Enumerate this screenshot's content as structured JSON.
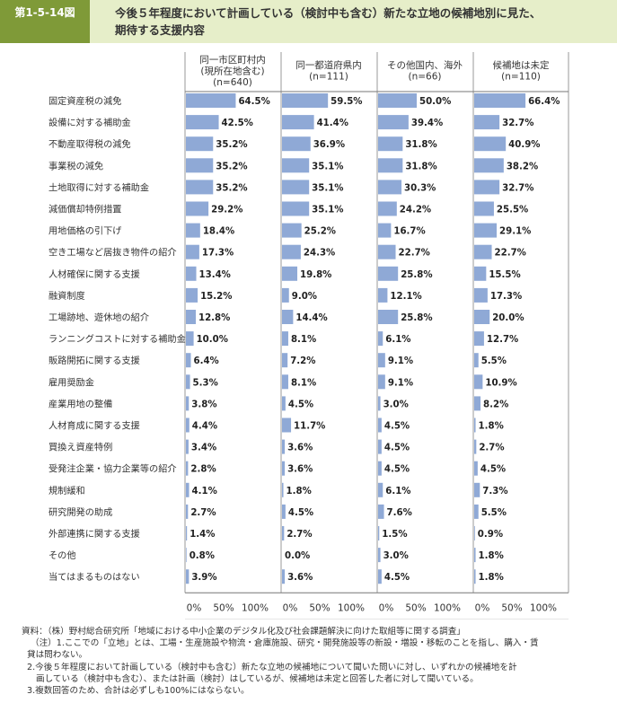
{
  "figure_label": "第1-5-14図",
  "title_line1": "今後５年程度において計画している（検討中も含む）新たな立地の候補地別に見た、",
  "title_line2": "期待する支援内容",
  "chart_data": {
    "type": "bar",
    "orientation": "horizontal",
    "bar_color": "#8fa9d6",
    "xlim": [
      0,
      100
    ],
    "x_ticks": [
      "0%",
      "50%",
      "100%"
    ],
    "categories": [
      "固定資産税の減免",
      "設備に対する補助金",
      "不動産取得税の減免",
      "事業税の減免",
      "土地取得に対する補助金",
      "減価償却特例措置",
      "用地価格の引下げ",
      "空き工場など居抜き物件の紹介",
      "人材確保に関する支援",
      "融資制度",
      "工場跡地、遊休地の紹介",
      "ランニングコストに対する補助金",
      "販路開拓に関する支援",
      "雇用奨励金",
      "産業用地の整備",
      "人材育成に関する支援",
      "買換え資産特例",
      "受発注企業・協力企業等の紹介",
      "規制緩和",
      "研究開発の助成",
      "外部連携に関する支援",
      "その他",
      "当てはまるものはない"
    ],
    "series": [
      {
        "name_lines": [
          "同一市区町村内",
          "(現所在地含む)",
          "(n=640)"
        ],
        "values": [
          64.5,
          42.5,
          35.2,
          35.2,
          35.2,
          29.2,
          18.4,
          17.3,
          13.4,
          15.2,
          12.8,
          10.0,
          6.4,
          5.3,
          3.8,
          4.4,
          3.4,
          2.8,
          4.1,
          2.7,
          1.4,
          0.8,
          3.9
        ],
        "labels": [
          "64.5%",
          "42.5%",
          "35.2%",
          "35.2%",
          "35.2%",
          "29.2%",
          "18.4%",
          "17.3%",
          "13.4%",
          "15.2%",
          "12.8%",
          "10.0%",
          "6.4%",
          "5.3%",
          "3.8%",
          "4.4%",
          "3.4%",
          "2.8%",
          "4.1%",
          "2.7%",
          "1.4%",
          "0.8%",
          "3.9%"
        ]
      },
      {
        "name_lines": [
          "同一都道府県内",
          "(n=111)"
        ],
        "values": [
          59.5,
          41.4,
          36.9,
          35.1,
          35.1,
          35.1,
          25.2,
          24.3,
          19.8,
          9.0,
          14.4,
          8.1,
          7.2,
          8.1,
          4.5,
          11.7,
          3.6,
          3.6,
          1.8,
          4.5,
          2.7,
          0.0,
          3.6
        ],
        "labels": [
          "59.5%",
          "41.4%",
          "36.9%",
          "35.1%",
          "35.1%",
          "35.1%",
          "25.2%",
          "24.3%",
          "19.8%",
          "9.0%",
          "14.4%",
          "8.1%",
          "7.2%",
          "8.1%",
          "4.5%",
          "11.7%",
          "3.6%",
          "3.6%",
          "1.8%",
          "4.5%",
          "2.7%",
          "0.0%",
          "3.6%"
        ]
      },
      {
        "name_lines": [
          "その他国内、海外",
          "(n=66)"
        ],
        "values": [
          50.0,
          39.4,
          31.8,
          31.8,
          30.3,
          24.2,
          16.7,
          22.7,
          25.8,
          12.1,
          25.8,
          6.1,
          9.1,
          9.1,
          3.0,
          4.5,
          4.5,
          4.5,
          6.1,
          7.6,
          1.5,
          3.0,
          4.5
        ],
        "labels": [
          "50.0%",
          "39.4%",
          "31.8%",
          "31.8%",
          "30.3%",
          "24.2%",
          "16.7%",
          "22.7%",
          "25.8%",
          "12.1%",
          "25.8%",
          "6.1%",
          "9.1%",
          "9.1%",
          "3.0%",
          "4.5%",
          "4.5%",
          "4.5%",
          "6.1%",
          "7.6%",
          "1.5%",
          "3.0%",
          "4.5%"
        ]
      },
      {
        "name_lines": [
          "候補地は未定",
          "(n=110)"
        ],
        "values": [
          66.4,
          32.7,
          40.9,
          38.2,
          32.7,
          25.5,
          29.1,
          22.7,
          15.5,
          17.3,
          20.0,
          12.7,
          5.5,
          10.9,
          8.2,
          1.8,
          2.7,
          4.5,
          7.3,
          5.5,
          0.9,
          1.8,
          1.8
        ],
        "labels": [
          "66.4%",
          "32.7%",
          "40.9%",
          "38.2%",
          "32.7%",
          "25.5%",
          "29.1%",
          "22.7%",
          "15.5%",
          "17.3%",
          "20.0%",
          "12.7%",
          "5.5%",
          "10.9%",
          "8.2%",
          "1.8%",
          "2.7%",
          "4.5%",
          "7.3%",
          "5.5%",
          "0.9%",
          "1.8%",
          "1.8%"
        ]
      }
    ]
  },
  "notes": {
    "source": "資料：（株）野村総合研究所「地域における中小企業のデジタル化及び社会課題解決に向けた取組等に関する調査」",
    "note1_a": "（注）1.ここでの「立地」とは、工場・生産施設や物流・倉庫施設、研究・開発施設等の新設・増設・移転のことを指し、購入・賃",
    "note1_b": "貸は問わない。",
    "note2_a": "2.今後５年程度において計画している（検討中も含む）新たな立地の候補地について聞いた問いに対し、いずれかの候補地を計",
    "note2_b": "画している（検討中も含む）、または計画（検討）はしているが、候補地は未定と回答した者に対して聞いている。",
    "note3": "3.複数回答のため、合計は必ずしも100%にはならない。"
  }
}
